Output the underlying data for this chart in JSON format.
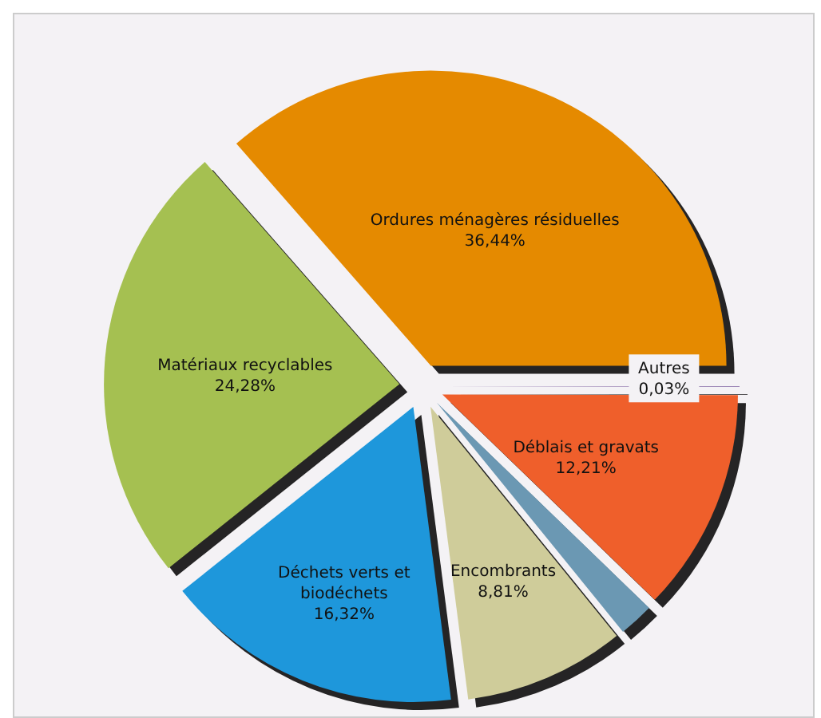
{
  "chart_data": {
    "type": "pie",
    "categories": [
      "Ordures ménagères résiduelles",
      "Matériaux recyclables",
      "Déchets verts et biodéchets",
      "Encombrants",
      null,
      "Déblais et gravats",
      "Autres"
    ],
    "values": [
      36.44,
      24.28,
      16.32,
      8.81,
      1.91,
      12.21,
      0.03
    ],
    "colors": [
      "#e58a00",
      "#a5c051",
      "#1e97db",
      "#cfcc9a",
      "#6b98b3",
      "#ef5f2b",
      "#8064a2"
    ],
    "value_labels": [
      "36,44%",
      "24,28%",
      "16,32%",
      "8,81%",
      null,
      "12,21%",
      "0,03%"
    ]
  }
}
